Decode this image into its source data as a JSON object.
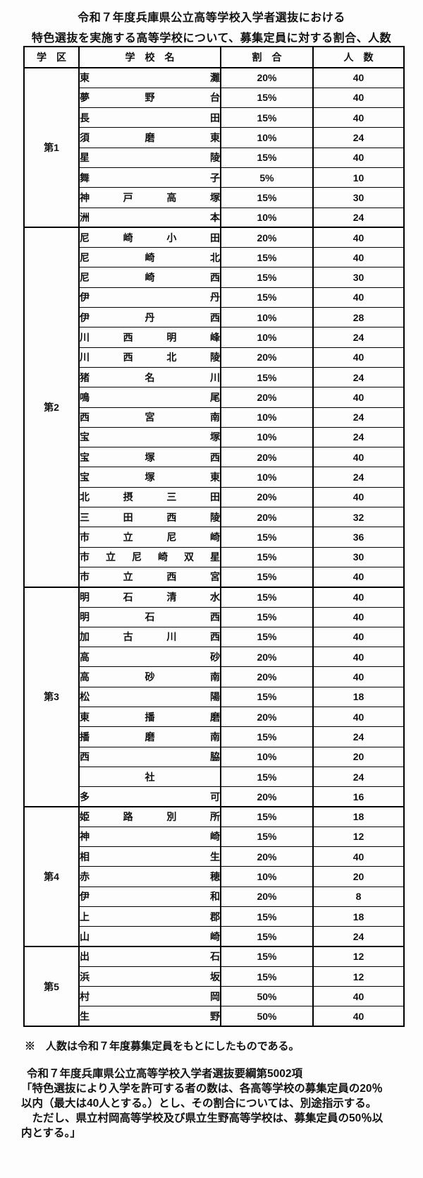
{
  "document": {
    "title_line1": "令和７年度兵庫県公立高等学校入学者選抜における",
    "title_line2": "特色選抜を実施する高等学校について、募集定員に対する割合、人数"
  },
  "table": {
    "headers": {
      "district": "学　区",
      "school": "学　校　名",
      "ratio": "割　合",
      "count": "人　数"
    },
    "districts": [
      {
        "label": "第1",
        "schools": [
          {
            "name": "東灘",
            "ratio": "20%",
            "count": "40"
          },
          {
            "name": "夢野台",
            "ratio": "15%",
            "count": "40"
          },
          {
            "name": "長田",
            "ratio": "15%",
            "count": "40"
          },
          {
            "name": "須磨東",
            "ratio": "10%",
            "count": "24"
          },
          {
            "name": "星陵",
            "ratio": "15%",
            "count": "40"
          },
          {
            "name": "舞子",
            "ratio": "5%",
            "count": "10"
          },
          {
            "name": "神戸高塚",
            "ratio": "15%",
            "count": "30"
          },
          {
            "name": "洲本",
            "ratio": "10%",
            "count": "24"
          }
        ]
      },
      {
        "label": "第2",
        "schools": [
          {
            "name": "尼崎小田",
            "ratio": "20%",
            "count": "40"
          },
          {
            "name": "尼崎北",
            "ratio": "15%",
            "count": "40"
          },
          {
            "name": "尼崎西",
            "ratio": "15%",
            "count": "30"
          },
          {
            "name": "伊丹",
            "ratio": "15%",
            "count": "40"
          },
          {
            "name": "伊丹西",
            "ratio": "10%",
            "count": "28"
          },
          {
            "name": "川西明峰",
            "ratio": "10%",
            "count": "24"
          },
          {
            "name": "川西北陵",
            "ratio": "20%",
            "count": "40"
          },
          {
            "name": "猪名川",
            "ratio": "15%",
            "count": "24"
          },
          {
            "name": "鳴尾",
            "ratio": "20%",
            "count": "40"
          },
          {
            "name": "西宮南",
            "ratio": "10%",
            "count": "24"
          },
          {
            "name": "宝塚",
            "ratio": "10%",
            "count": "24"
          },
          {
            "name": "宝塚西",
            "ratio": "20%",
            "count": "40"
          },
          {
            "name": "宝塚東",
            "ratio": "10%",
            "count": "24"
          },
          {
            "name": "北摂三田",
            "ratio": "20%",
            "count": "40"
          },
          {
            "name": "三田西陵",
            "ratio": "20%",
            "count": "32"
          },
          {
            "name": "市立尼崎",
            "ratio": "15%",
            "count": "36"
          },
          {
            "name": "市立尼崎双星",
            "ratio": "15%",
            "count": "30"
          },
          {
            "name": "市立西宮",
            "ratio": "15%",
            "count": "40"
          }
        ]
      },
      {
        "label": "第3",
        "schools": [
          {
            "name": "明石清水",
            "ratio": "15%",
            "count": "40"
          },
          {
            "name": "明石西",
            "ratio": "15%",
            "count": "40"
          },
          {
            "name": "加古川西",
            "ratio": "15%",
            "count": "40"
          },
          {
            "name": "高砂",
            "ratio": "20%",
            "count": "40"
          },
          {
            "name": "高砂南",
            "ratio": "20%",
            "count": "40"
          },
          {
            "name": "松陽",
            "ratio": "15%",
            "count": "18"
          },
          {
            "name": "東播磨",
            "ratio": "20%",
            "count": "40"
          },
          {
            "name": "播磨南",
            "ratio": "15%",
            "count": "24"
          },
          {
            "name": "西脇",
            "ratio": "10%",
            "count": "20"
          },
          {
            "name": "社",
            "ratio": "15%",
            "count": "24"
          },
          {
            "name": "多可",
            "ratio": "20%",
            "count": "16"
          }
        ]
      },
      {
        "label": "第4",
        "schools": [
          {
            "name": "姫路別所",
            "ratio": "15%",
            "count": "18"
          },
          {
            "name": "神崎",
            "ratio": "15%",
            "count": "12"
          },
          {
            "name": "相生",
            "ratio": "20%",
            "count": "40"
          },
          {
            "name": "赤穂",
            "ratio": "10%",
            "count": "20"
          },
          {
            "name": "伊和",
            "ratio": "20%",
            "count": "8"
          },
          {
            "name": "上郡",
            "ratio": "15%",
            "count": "18"
          },
          {
            "name": "山崎",
            "ratio": "15%",
            "count": "24"
          }
        ]
      },
      {
        "label": "第5",
        "schools": [
          {
            "name": "出石",
            "ratio": "15%",
            "count": "12"
          },
          {
            "name": "浜坂",
            "ratio": "15%",
            "count": "12"
          },
          {
            "name": "村岡",
            "ratio": "50%",
            "count": "40"
          },
          {
            "name": "生野",
            "ratio": "50%",
            "count": "40"
          }
        ]
      }
    ]
  },
  "notes": {
    "asterisk_note": "※　人数は令和７年度募集定員をもとにしたものである。",
    "reference_line": "令和７年度兵庫県公立高等学校入学者選抜要綱第5002項",
    "quote_lines": [
      "「特色選抜により入学を許可する者の数は、各高等学校の募集定員の20％",
      "以内（最大は40人とする。）とし、その割合については、別途指示する。",
      "　ただし、県立村岡高等学校及び県立生野高等学校は、募集定員の50％以",
      "内とする。」"
    ]
  }
}
